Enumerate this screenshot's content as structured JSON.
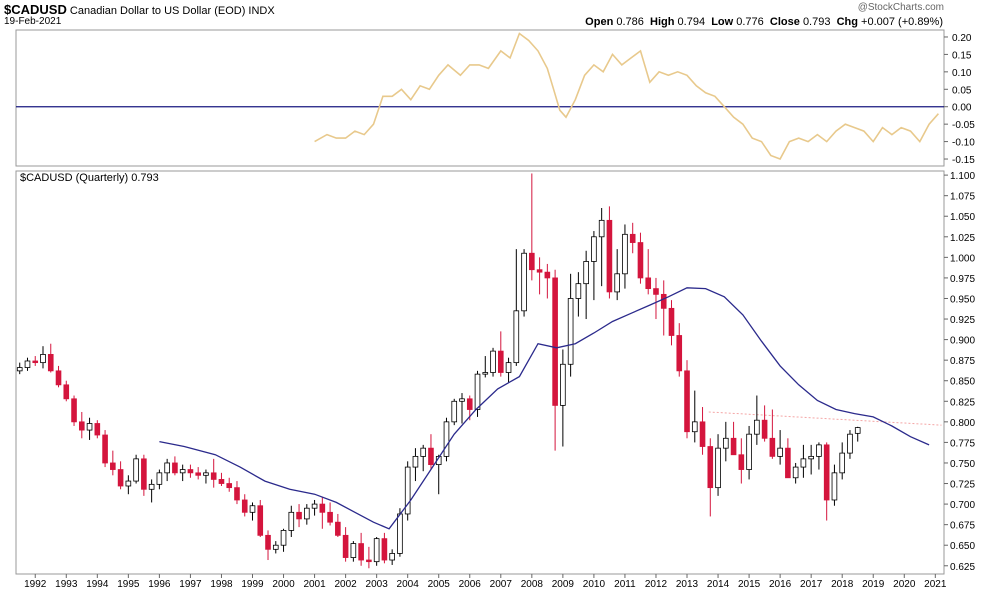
{
  "header": {
    "symbol": "$CADUSD",
    "name": "Canadian Dollar to US Dollar (EOD)",
    "exchange": "INDX",
    "date": "19-Feb-2021",
    "copyright": "@StockCharts.com",
    "quote": {
      "open_label": "Open",
      "open": "0.786",
      "high_label": "High",
      "high": "0.794",
      "low_label": "Low",
      "low": "0.776",
      "close_label": "Close",
      "close": "0.793",
      "chg_label": "Chg",
      "chg": "+0.007 (+0.89%)"
    }
  },
  "main_legend": "$CADUSD (Quarterly) 0.793",
  "colors": {
    "up": "#ffffff",
    "down": "#d4153d",
    "wick": "#000000",
    "ma": "#2b2a8c",
    "momentum": "#e8c98c",
    "zero_line": "#1a1a80",
    "dotted": "#f4a5a5",
    "grid": "#bfbfbf"
  },
  "chart_data": [
    {
      "type": "line",
      "panel": "momentum",
      "ylim": [
        -0.17,
        0.22
      ],
      "yticks": [
        "0.20",
        "0.15",
        "0.10",
        "0.05",
        "0.00",
        "-0.05",
        "-0.10",
        "-0.15"
      ],
      "x": [
        2001.0,
        2001.4,
        2001.7,
        2002.0,
        2002.3,
        2002.6,
        2002.9,
        2003.2,
        2003.5,
        2003.8,
        2004.1,
        2004.4,
        2004.7,
        2005.0,
        2005.3,
        2005.7,
        2006.0,
        2006.3,
        2006.6,
        2007.0,
        2007.3,
        2007.6,
        2007.9,
        2008.2,
        2008.5,
        2008.7,
        2008.9,
        2009.1,
        2009.4,
        2009.7,
        2010.0,
        2010.3,
        2010.6,
        2010.9,
        2011.2,
        2011.5,
        2011.8,
        2012.1,
        2012.4,
        2012.7,
        2013.0,
        2013.3,
        2013.6,
        2013.9,
        2014.2,
        2014.5,
        2014.8,
        2015.1,
        2015.4,
        2015.7,
        2016.0,
        2016.3,
        2016.6,
        2016.9,
        2017.2,
        2017.5,
        2017.8,
        2018.1,
        2018.4,
        2018.7,
        2019.0,
        2019.3,
        2019.6,
        2019.9,
        2020.2,
        2020.5,
        2020.8,
        2021.1
      ],
      "y": [
        -0.1,
        -0.08,
        -0.09,
        -0.09,
        -0.07,
        -0.08,
        -0.05,
        0.03,
        0.03,
        0.05,
        0.02,
        0.06,
        0.05,
        0.09,
        0.12,
        0.09,
        0.12,
        0.12,
        0.11,
        0.16,
        0.14,
        0.21,
        0.19,
        0.16,
        0.11,
        0.05,
        -0.01,
        -0.03,
        0.02,
        0.09,
        0.12,
        0.1,
        0.15,
        0.12,
        0.14,
        0.16,
        0.07,
        0.1,
        0.09,
        0.1,
        0.09,
        0.06,
        0.04,
        0.03,
        0.0,
        -0.03,
        -0.05,
        -0.09,
        -0.1,
        -0.14,
        -0.15,
        -0.1,
        -0.09,
        -0.1,
        -0.08,
        -0.1,
        -0.07,
        -0.05,
        -0.06,
        -0.07,
        -0.1,
        -0.06,
        -0.08,
        -0.06,
        -0.07,
        -0.1,
        -0.05,
        -0.02
      ]
    },
    {
      "type": "candlestick",
      "panel": "price",
      "title": "$CADUSD (Quarterly) 0.793",
      "ylim": [
        0.615,
        1.105
      ],
      "yticks": [
        "1.100",
        "1.075",
        "1.050",
        "1.025",
        "1.000",
        "0.975",
        "0.950",
        "0.925",
        "0.900",
        "0.875",
        "0.850",
        "0.825",
        "0.800",
        "0.775",
        "0.750",
        "0.725",
        "0.700",
        "0.675",
        "0.650",
        "0.625"
      ],
      "xticks": [
        "1992",
        "1993",
        "1994",
        "1995",
        "1996",
        "1997",
        "1998",
        "1999",
        "2000",
        "2001",
        "2002",
        "2003",
        "2004",
        "2005",
        "2006",
        "2007",
        "2008",
        "2009",
        "2010",
        "2011",
        "2012",
        "2013",
        "2014",
        "2015",
        "2016",
        "2017",
        "2018",
        "2019",
        "2020",
        "2021"
      ],
      "xlim": [
        1991.38,
        2021.28
      ],
      "ohlc": [
        [
          0.862,
          0.872,
          0.858,
          0.866
        ],
        [
          0.866,
          0.878,
          0.862,
          0.874
        ],
        [
          0.874,
          0.88,
          0.868,
          0.872
        ],
        [
          0.872,
          0.892,
          0.865,
          0.882
        ],
        [
          0.882,
          0.895,
          0.86,
          0.862
        ],
        [
          0.862,
          0.868,
          0.842,
          0.845
        ],
        [
          0.845,
          0.85,
          0.825,
          0.828
        ],
        [
          0.828,
          0.832,
          0.795,
          0.8
        ],
        [
          0.8,
          0.812,
          0.78,
          0.79
        ],
        [
          0.79,
          0.805,
          0.778,
          0.798
        ],
        [
          0.798,
          0.802,
          0.78,
          0.784
        ],
        [
          0.784,
          0.79,
          0.745,
          0.75
        ],
        [
          0.75,
          0.765,
          0.735,
          0.742
        ],
        [
          0.742,
          0.752,
          0.718,
          0.722
        ],
        [
          0.722,
          0.735,
          0.712,
          0.728
        ],
        [
          0.728,
          0.76,
          0.725,
          0.755
        ],
        [
          0.755,
          0.76,
          0.71,
          0.718
        ],
        [
          0.718,
          0.73,
          0.702,
          0.724
        ],
        [
          0.724,
          0.742,
          0.718,
          0.738
        ],
        [
          0.738,
          0.755,
          0.728,
          0.75
        ],
        [
          0.75,
          0.758,
          0.735,
          0.738
        ],
        [
          0.738,
          0.748,
          0.728,
          0.742
        ],
        [
          0.742,
          0.748,
          0.732,
          0.738
        ],
        [
          0.738,
          0.745,
          0.73,
          0.735
        ],
        [
          0.735,
          0.742,
          0.725,
          0.738
        ],
        [
          0.738,
          0.755,
          0.72,
          0.73
        ],
        [
          0.73,
          0.738,
          0.722,
          0.725
        ],
        [
          0.725,
          0.732,
          0.715,
          0.72
        ],
        [
          0.72,
          0.728,
          0.7,
          0.705
        ],
        [
          0.705,
          0.712,
          0.685,
          0.69
        ],
        [
          0.69,
          0.702,
          0.68,
          0.698
        ],
        [
          0.698,
          0.705,
          0.66,
          0.662
        ],
        [
          0.662,
          0.668,
          0.632,
          0.645
        ],
        [
          0.645,
          0.655,
          0.64,
          0.65
        ],
        [
          0.65,
          0.67,
          0.642,
          0.668
        ],
        [
          0.668,
          0.698,
          0.66,
          0.69
        ],
        [
          0.69,
          0.7,
          0.672,
          0.682
        ],
        [
          0.682,
          0.7,
          0.675,
          0.695
        ],
        [
          0.695,
          0.705,
          0.686,
          0.7
        ],
        [
          0.7,
          0.708,
          0.67,
          0.69
        ],
        [
          0.69,
          0.702,
          0.674,
          0.678
        ],
        [
          0.678,
          0.688,
          0.66,
          0.662
        ],
        [
          0.662,
          0.672,
          0.63,
          0.635
        ],
        [
          0.635,
          0.655,
          0.63,
          0.652
        ],
        [
          0.652,
          0.665,
          0.625,
          0.632
        ],
        [
          0.632,
          0.648,
          0.622,
          0.63
        ],
        [
          0.63,
          0.66,
          0.625,
          0.658
        ],
        [
          0.658,
          0.665,
          0.628,
          0.632
        ],
        [
          0.632,
          0.645,
          0.626,
          0.64
        ],
        [
          0.64,
          0.695,
          0.636,
          0.688
        ],
        [
          0.688,
          0.752,
          0.68,
          0.745
        ],
        [
          0.745,
          0.768,
          0.728,
          0.758
        ],
        [
          0.758,
          0.772,
          0.74,
          0.768
        ],
        [
          0.768,
          0.785,
          0.742,
          0.748
        ],
        [
          0.748,
          0.76,
          0.712,
          0.758
        ],
        [
          0.758,
          0.805,
          0.752,
          0.8
        ],
        [
          0.8,
          0.828,
          0.796,
          0.825
        ],
        [
          0.825,
          0.835,
          0.798,
          0.828
        ],
        [
          0.828,
          0.832,
          0.802,
          0.815
        ],
        [
          0.815,
          0.862,
          0.806,
          0.858
        ],
        [
          0.858,
          0.88,
          0.854,
          0.86
        ],
        [
          0.86,
          0.89,
          0.855,
          0.886
        ],
        [
          0.886,
          0.91,
          0.855,
          0.86
        ],
        [
          0.86,
          0.878,
          0.848,
          0.872
        ],
        [
          0.872,
          1.01,
          0.868,
          0.935
        ],
        [
          0.935,
          1.01,
          0.928,
          1.005
        ],
        [
          1.005,
          1.102,
          0.972,
          0.985
        ],
        [
          0.985,
          1.0,
          0.955,
          0.982
        ],
        [
          0.982,
          0.992,
          0.95,
          0.975
        ],
        [
          0.975,
          0.985,
          0.765,
          0.82
        ],
        [
          0.82,
          0.888,
          0.77,
          0.87
        ],
        [
          0.87,
          0.98,
          0.855,
          0.95
        ],
        [
          0.95,
          0.982,
          0.928,
          0.968
        ],
        [
          0.968,
          1.008,
          0.925,
          0.995
        ],
        [
          0.995,
          1.032,
          0.948,
          1.025
        ],
        [
          1.025,
          1.06,
          0.965,
          1.045
        ],
        [
          1.045,
          1.062,
          0.95,
          0.958
        ],
        [
          0.958,
          1.01,
          0.948,
          0.98
        ],
        [
          0.98,
          1.04,
          0.962,
          1.028
        ],
        [
          1.028,
          1.042,
          1.005,
          1.018
        ],
        [
          1.018,
          1.03,
          0.968,
          0.975
        ],
        [
          0.975,
          1.01,
          0.955,
          0.962
        ],
        [
          0.962,
          0.975,
          0.925,
          0.955
        ],
        [
          0.955,
          0.972,
          0.905,
          0.938
        ],
        [
          0.938,
          0.948,
          0.893,
          0.905
        ],
        [
          0.905,
          0.92,
          0.855,
          0.862
        ],
        [
          0.862,
          0.875,
          0.78,
          0.788
        ],
        [
          0.788,
          0.838,
          0.775,
          0.8
        ],
        [
          0.8,
          0.818,
          0.76,
          0.77
        ],
        [
          0.77,
          0.78,
          0.685,
          0.72
        ],
        [
          0.72,
          0.785,
          0.71,
          0.768
        ],
        [
          0.768,
          0.8,
          0.752,
          0.78
        ],
        [
          0.78,
          0.8,
          0.76,
          0.76
        ],
        [
          0.76,
          0.78,
          0.725,
          0.742
        ],
        [
          0.742,
          0.795,
          0.73,
          0.785
        ],
        [
          0.785,
          0.832,
          0.772,
          0.802
        ],
        [
          0.802,
          0.82,
          0.776,
          0.78
        ],
        [
          0.78,
          0.815,
          0.755,
          0.758
        ],
        [
          0.758,
          0.79,
          0.748,
          0.768
        ],
        [
          0.768,
          0.78,
          0.735,
          0.732
        ],
        [
          0.732,
          0.75,
          0.725,
          0.745
        ],
        [
          0.745,
          0.772,
          0.732,
          0.755
        ],
        [
          0.755,
          0.772,
          0.736,
          0.758
        ],
        [
          0.758,
          0.775,
          0.742,
          0.772
        ],
        [
          0.772,
          0.775,
          0.68,
          0.705
        ],
        [
          0.705,
          0.748,
          0.698,
          0.738
        ],
        [
          0.738,
          0.775,
          0.73,
          0.762
        ],
        [
          0.762,
          0.79,
          0.755,
          0.785
        ],
        [
          0.786,
          0.794,
          0.776,
          0.793
        ]
      ],
      "ma_x": [
        1996.0,
        1996.8,
        1997.8,
        1998.6,
        1999.4,
        2000.2,
        2001.0,
        2001.7,
        2002.3,
        2002.9,
        2003.4,
        2004.1,
        2004.8,
        2005.5,
        2006.2,
        2006.9,
        2007.6,
        2008.2,
        2008.8,
        2009.4,
        2010.0,
        2010.6,
        2011.2,
        2011.8,
        2012.4,
        2013.0,
        2013.6,
        2014.2,
        2014.8,
        2015.4,
        2016.0,
        2016.6,
        2017.2,
        2017.8,
        2018.4,
        2019.0,
        2019.6,
        2020.2,
        2020.8
      ],
      "ma_y": [
        0.776,
        0.77,
        0.76,
        0.745,
        0.728,
        0.718,
        0.712,
        0.702,
        0.69,
        0.678,
        0.67,
        0.705,
        0.745,
        0.785,
        0.815,
        0.84,
        0.855,
        0.895,
        0.89,
        0.895,
        0.908,
        0.922,
        0.932,
        0.942,
        0.952,
        0.963,
        0.962,
        0.952,
        0.93,
        0.898,
        0.868,
        0.845,
        0.826,
        0.815,
        0.81,
        0.806,
        0.795,
        0.782,
        0.772
      ],
      "dotted_x": [
        2013.7,
        2021.2
      ],
      "dotted_y": [
        0.812,
        0.796
      ]
    }
  ]
}
